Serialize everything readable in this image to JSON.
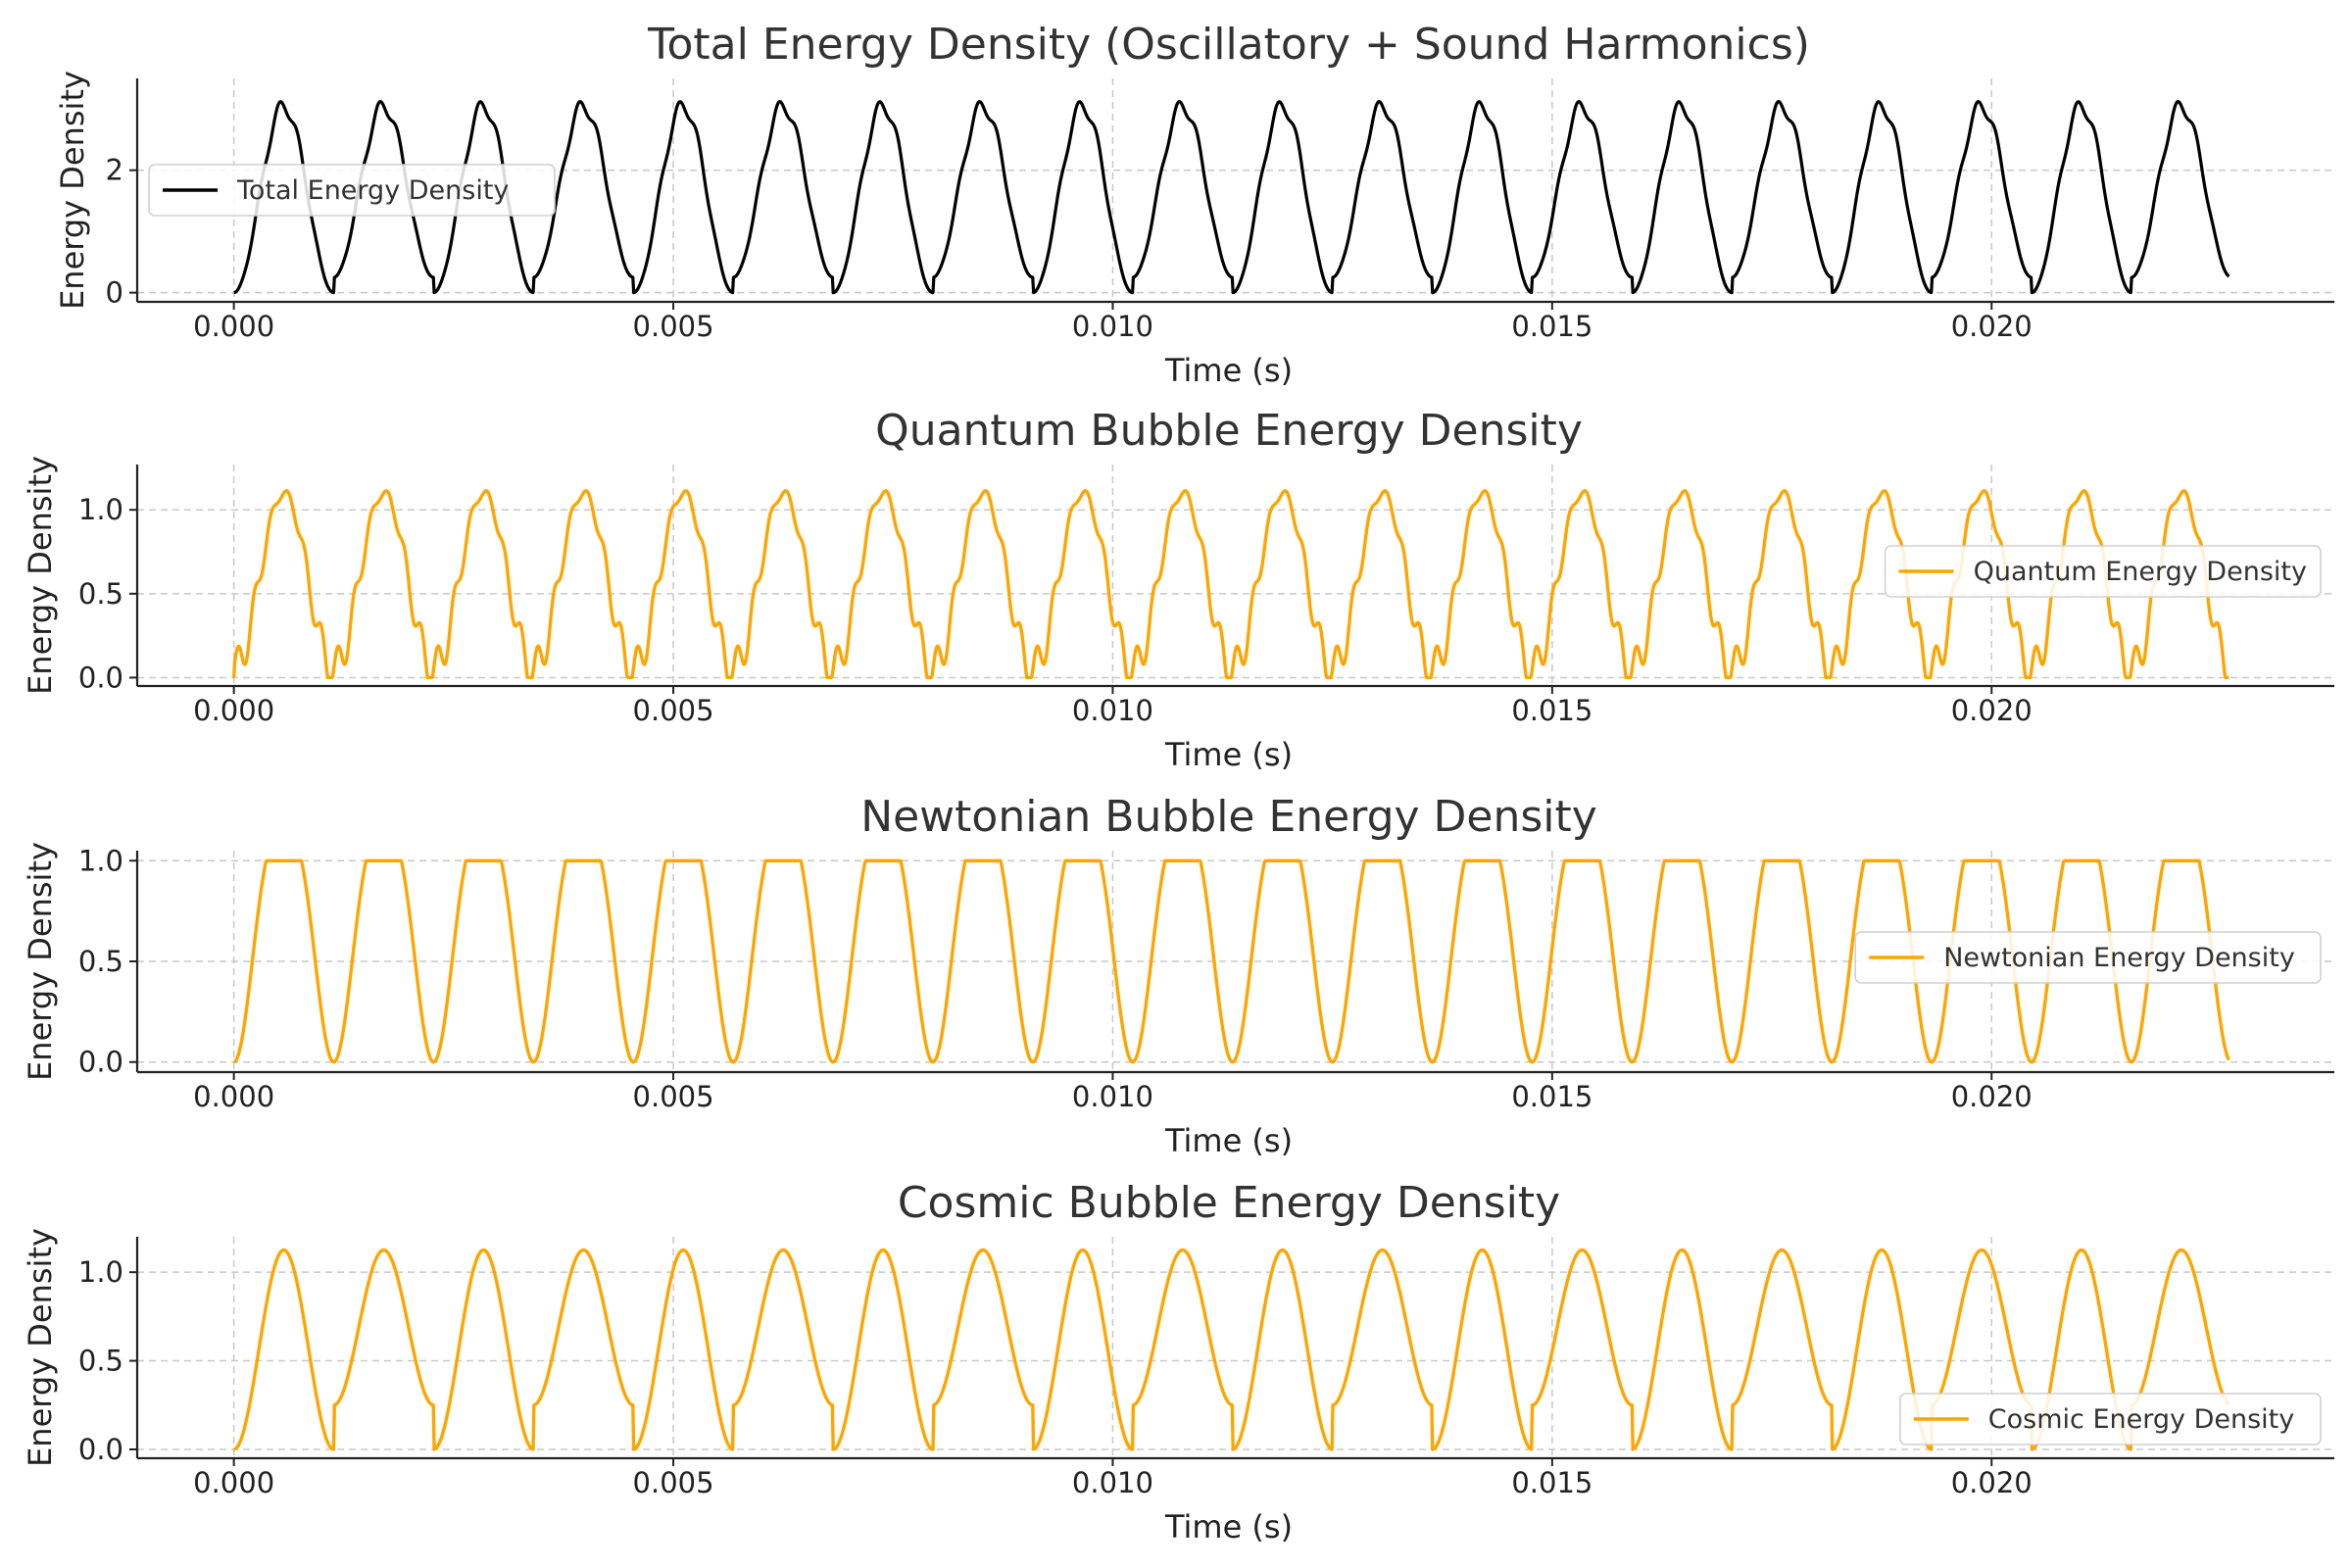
{
  "chart_data": [
    {
      "type": "line",
      "title": "Total Energy Density (Oscillatory + Sound Harmonics)",
      "xlabel": "Time (s)",
      "ylabel": "Energy Density",
      "xlim": [
        -0.0011,
        0.0239
      ],
      "ylim": [
        -0.15,
        3.5
      ],
      "xticks": [
        0.0,
        0.005,
        0.01,
        0.015,
        0.02
      ],
      "xtick_labels": [
        "0.000",
        "0.005",
        "0.010",
        "0.015",
        "0.020"
      ],
      "yticks": [
        0,
        2
      ],
      "ytick_labels": [
        "0",
        "2"
      ],
      "grid": true,
      "legend": {
        "position": "center-left",
        "entries": [
          "Total Energy Density"
        ]
      },
      "series": [
        {
          "name": "Total Energy Density",
          "color": "#000000",
          "x_range": [
            0.0,
            0.0227
          ],
          "fundamental_hz": 880,
          "description_values": {
            "min": 0.0,
            "max": 3.3,
            "shallow_trough": 0.25
          }
        }
      ]
    },
    {
      "type": "line",
      "title": "Quantum Bubble Energy Density",
      "xlabel": "Time (s)",
      "ylabel": "Energy Density",
      "xlim": [
        -0.0011,
        0.0239
      ],
      "ylim": [
        -0.05,
        1.27
      ],
      "xticks": [
        0.0,
        0.005,
        0.01,
        0.015,
        0.02
      ],
      "xtick_labels": [
        "0.000",
        "0.005",
        "0.010",
        "0.015",
        "0.020"
      ],
      "yticks": [
        0.0,
        0.5,
        1.0
      ],
      "ytick_labels": [
        "0.0",
        "0.5",
        "1.0"
      ],
      "grid": true,
      "legend": {
        "position": "center-right",
        "entries": [
          "Quantum Energy Density"
        ]
      },
      "series": [
        {
          "name": "Quantum Energy Density",
          "color": "#FFA500",
          "x_range": [
            0.0,
            0.0227
          ],
          "fundamental_hz": 880,
          "description_values": {
            "min": 0.0,
            "max": 1.2
          }
        }
      ]
    },
    {
      "type": "line",
      "title": "Newtonian Bubble Energy Density",
      "xlabel": "Time (s)",
      "ylabel": "Energy Density",
      "xlim": [
        -0.0011,
        0.0239
      ],
      "ylim": [
        -0.05,
        1.05
      ],
      "xticks": [
        0.0,
        0.005,
        0.01,
        0.015,
        0.02
      ],
      "xtick_labels": [
        "0.000",
        "0.005",
        "0.010",
        "0.015",
        "0.020"
      ],
      "yticks": [
        0.0,
        0.5,
        1.0
      ],
      "ytick_labels": [
        "0.0",
        "0.5",
        "1.0"
      ],
      "grid": true,
      "legend": {
        "position": "center-right",
        "entries": [
          "Newtonian Energy Density"
        ]
      },
      "series": [
        {
          "name": "Newtonian Energy Density",
          "color": "#FFA500",
          "x_range": [
            0.0,
            0.0227
          ],
          "fundamental_hz": 880,
          "description_values": {
            "min": 0.0,
            "max": 1.0
          }
        }
      ]
    },
    {
      "type": "line",
      "title": "Cosmic Bubble Energy Density",
      "xlabel": "Time (s)",
      "ylabel": "Energy Density",
      "xlim": [
        -0.0011,
        0.0239
      ],
      "ylim": [
        -0.05,
        1.2
      ],
      "xticks": [
        0.0,
        0.005,
        0.01,
        0.015,
        0.02
      ],
      "xtick_labels": [
        "0.000",
        "0.005",
        "0.010",
        "0.015",
        "0.020"
      ],
      "yticks": [
        0.0,
        0.5,
        1.0
      ],
      "ytick_labels": [
        "0.0",
        "0.5",
        "1.0"
      ],
      "grid": true,
      "legend": {
        "position": "lower-right",
        "entries": [
          "Cosmic Energy Density"
        ]
      },
      "series": [
        {
          "name": "Cosmic Energy Density",
          "color": "#FFA500",
          "x_range": [
            0.0,
            0.0227
          ],
          "fundamental_hz": 880,
          "description_values": {
            "min": 0.0,
            "max": 1.125,
            "shallow_trough": 0.25
          }
        }
      ]
    }
  ]
}
